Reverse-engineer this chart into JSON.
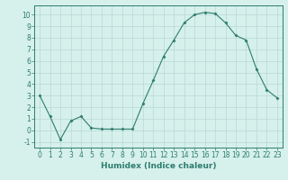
{
  "xlabel": "Humidex (Indice chaleur)",
  "x": [
    0,
    1,
    2,
    3,
    4,
    5,
    6,
    7,
    8,
    9,
    10,
    11,
    12,
    13,
    14,
    15,
    16,
    17,
    18,
    19,
    20,
    21,
    22,
    23
  ],
  "y": [
    3.0,
    1.2,
    -0.8,
    0.8,
    1.2,
    0.2,
    0.1,
    0.1,
    0.1,
    0.1,
    2.3,
    4.3,
    6.4,
    7.8,
    9.3,
    10.0,
    10.2,
    10.1,
    9.3,
    8.2,
    7.8,
    5.3,
    3.5,
    2.8
  ],
  "line_color": "#2e7d6e",
  "marker": "D",
  "marker_size": 1.5,
  "bg_color": "#d6f0ec",
  "grid_color": "#b8d8d4",
  "ylim": [
    -1.5,
    10.8
  ],
  "xlim": [
    -0.5,
    23.5
  ],
  "yticks": [
    -1,
    0,
    1,
    2,
    3,
    4,
    5,
    6,
    7,
    8,
    9,
    10
  ],
  "xticks": [
    0,
    1,
    2,
    3,
    4,
    5,
    6,
    7,
    8,
    9,
    10,
    11,
    12,
    13,
    14,
    15,
    16,
    17,
    18,
    19,
    20,
    21,
    22,
    23
  ],
  "tick_color": "#2e7d6e",
  "label_color": "#2e7d6e",
  "spine_color": "#2e7d6e",
  "xlabel_fontsize": 6.5,
  "tick_fontsize": 5.5
}
